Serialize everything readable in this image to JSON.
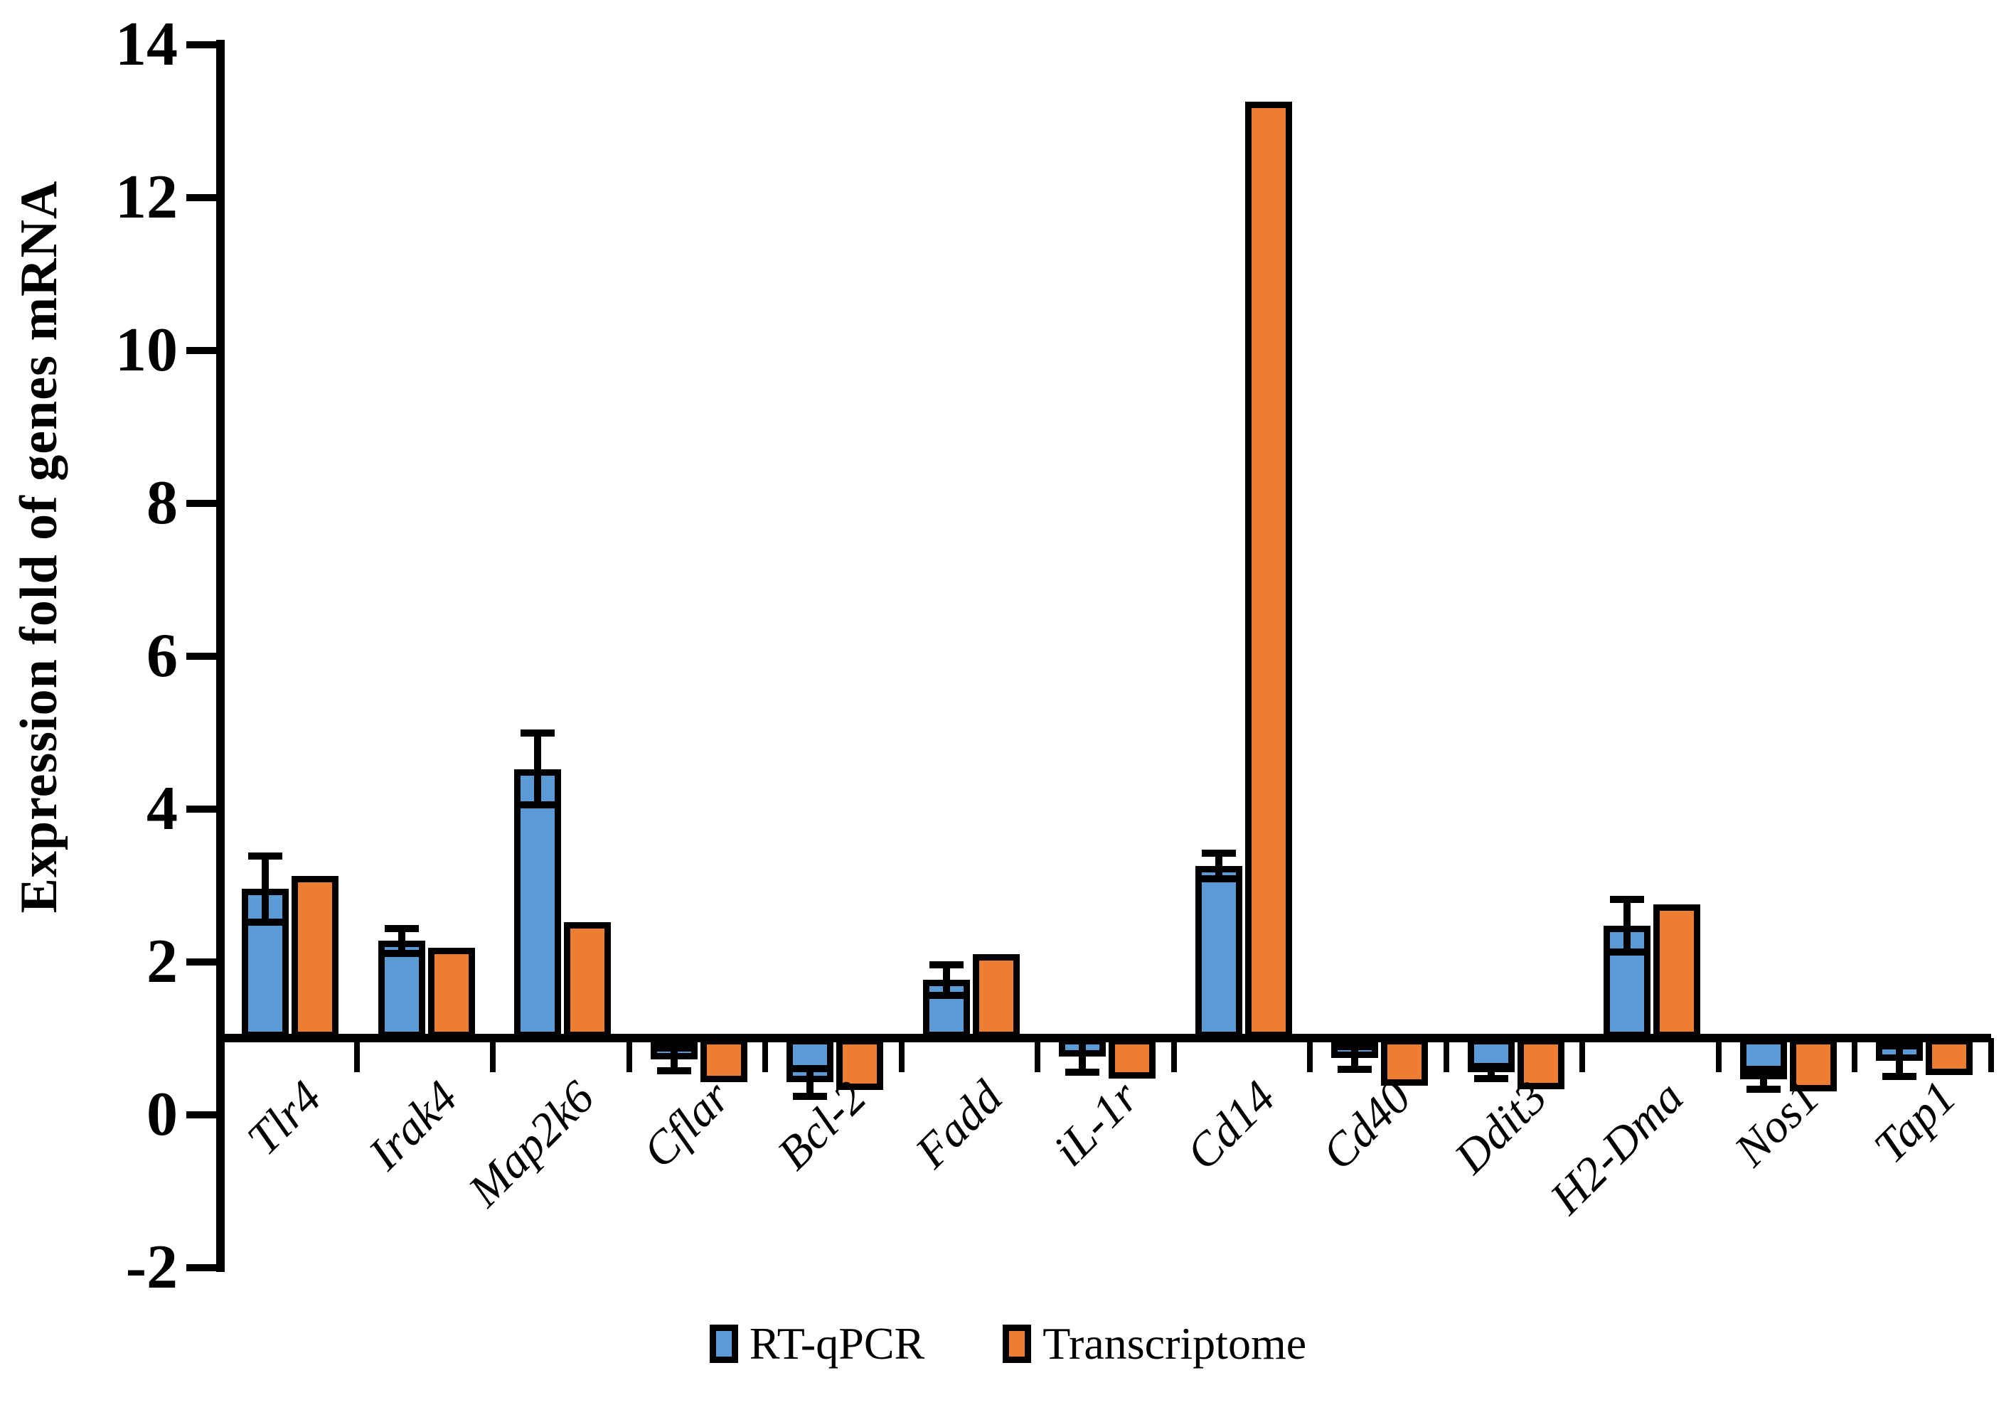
{
  "chart_data": {
    "type": "bar",
    "title": "",
    "xlabel": "",
    "ylabel": "Expression fold of genes mRNA",
    "ylim": [
      -2,
      14
    ],
    "y_ticks": [
      14,
      12,
      10,
      8,
      6,
      4,
      2,
      0,
      -2
    ],
    "bar_base": 1,
    "grid": false,
    "legend_position": "bottom",
    "categories": [
      "Tlr4",
      "Irak4",
      "Map2k6",
      "Cflar",
      "Bcl-2",
      "Fadd",
      "iL-1r",
      "Cd14",
      "Cd40",
      "Ddit3",
      "H2-Dma",
      "Nos1",
      "Tap1"
    ],
    "series": [
      {
        "name": "RT-qPCR",
        "color": "#5B9BD5",
        "values": [
          2.95,
          2.27,
          4.52,
          0.72,
          0.42,
          1.76,
          0.76,
          3.25,
          0.74,
          0.55,
          2.47,
          0.46,
          0.7
        ],
        "errors": [
          0.43,
          0.16,
          0.47,
          0.15,
          0.18,
          0.2,
          0.21,
          0.17,
          0.15,
          0.08,
          0.34,
          0.13,
          0.2
        ]
      },
      {
        "name": "Transcriptome",
        "color": "#ED7D31",
        "values": [
          3.12,
          2.18,
          2.52,
          0.42,
          0.32,
          2.1,
          0.47,
          13.25,
          0.38,
          0.33,
          2.75,
          0.3,
          0.52
        ],
        "errors": null
      }
    ]
  },
  "colors": {
    "axis": "#000000",
    "background": "#FFFFFF",
    "rt_qpcr": "#5B9BD5",
    "transcriptome": "#ED7D31"
  }
}
